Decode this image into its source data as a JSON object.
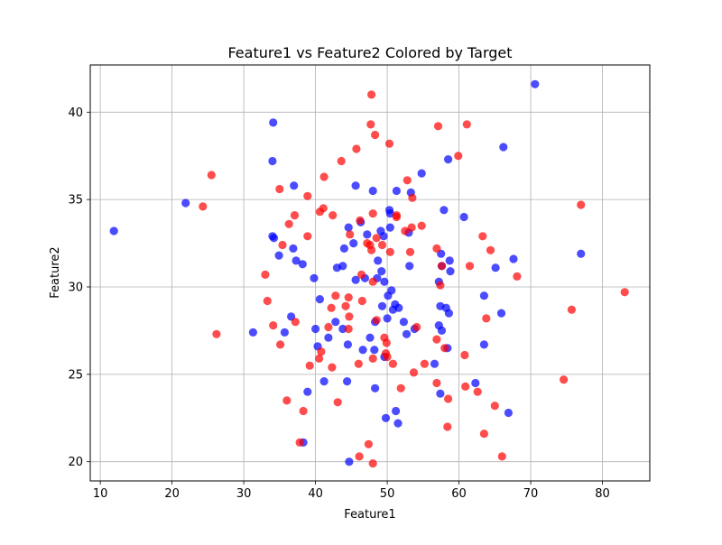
{
  "chart_data": {
    "type": "scatter",
    "title": "Feature1 vs Feature2 Colored by Target",
    "xlabel": "Feature1",
    "ylabel": "Feature2",
    "xlim": [
      8.6,
      86.6
    ],
    "ylim": [
      18.9,
      42.7
    ],
    "xticks": [
      10,
      20,
      30,
      40,
      50,
      60,
      70,
      80
    ],
    "yticks": [
      20,
      25,
      30,
      35,
      40
    ],
    "grid": true,
    "legend": "none",
    "series": [
      {
        "color": "#0000ff",
        "points": [
          [
            11.9,
            33.2
          ],
          [
            21.9,
            34.8
          ],
          [
            31.3,
            27.4
          ],
          [
            34.1,
            39.4
          ],
          [
            34.0,
            37.2
          ],
          [
            34.0,
            32.9
          ],
          [
            34.2,
            32.8
          ],
          [
            34.9,
            31.8
          ],
          [
            35.7,
            27.4
          ],
          [
            36.6,
            28.3
          ],
          [
            37.0,
            35.8
          ],
          [
            36.9,
            32.2
          ],
          [
            37.3,
            31.5
          ],
          [
            38.2,
            31.3
          ],
          [
            38.3,
            21.1
          ],
          [
            38.9,
            24.0
          ],
          [
            39.8,
            30.5
          ],
          [
            40.0,
            27.6
          ],
          [
            40.3,
            26.6
          ],
          [
            40.6,
            29.3
          ],
          [
            41.2,
            24.6
          ],
          [
            41.8,
            27.1
          ],
          [
            42.8,
            28.0
          ],
          [
            43.0,
            31.1
          ],
          [
            43.8,
            31.2
          ],
          [
            43.8,
            27.6
          ],
          [
            44.0,
            32.2
          ],
          [
            44.4,
            24.6
          ],
          [
            44.5,
            26.7
          ],
          [
            44.6,
            33.4
          ],
          [
            44.7,
            20.0
          ],
          [
            45.3,
            32.5
          ],
          [
            45.6,
            35.8
          ],
          [
            45.6,
            30.4
          ],
          [
            46.3,
            33.7
          ],
          [
            46.6,
            26.4
          ],
          [
            46.9,
            30.5
          ],
          [
            47.2,
            33.0
          ],
          [
            47.6,
            27.1
          ],
          [
            48.0,
            35.5
          ],
          [
            48.2,
            26.4
          ],
          [
            48.3,
            24.2
          ],
          [
            48.3,
            28.0
          ],
          [
            48.6,
            30.5
          ],
          [
            48.7,
            31.5
          ],
          [
            49.1,
            33.2
          ],
          [
            49.2,
            30.9
          ],
          [
            49.3,
            28.9
          ],
          [
            49.5,
            32.9
          ],
          [
            49.6,
            26.0
          ],
          [
            49.6,
            30.3
          ],
          [
            49.8,
            22.5
          ],
          [
            50.0,
            28.2
          ],
          [
            50.1,
            29.5
          ],
          [
            50.3,
            34.4
          ],
          [
            50.4,
            34.2
          ],
          [
            50.4,
            33.4
          ],
          [
            50.6,
            29.8
          ],
          [
            50.8,
            28.7
          ],
          [
            51.1,
            29.0
          ],
          [
            51.2,
            22.9
          ],
          [
            51.3,
            35.5
          ],
          [
            51.5,
            22.2
          ],
          [
            51.6,
            28.8
          ],
          [
            52.3,
            28.0
          ],
          [
            52.7,
            27.3
          ],
          [
            53.0,
            33.1
          ],
          [
            53.1,
            31.2
          ],
          [
            53.3,
            35.4
          ],
          [
            53.8,
            27.6
          ],
          [
            54.8,
            36.5
          ],
          [
            56.6,
            25.6
          ],
          [
            57.2,
            27.8
          ],
          [
            57.2,
            30.3
          ],
          [
            57.4,
            28.9
          ],
          [
            57.4,
            23.9
          ],
          [
            57.5,
            31.9
          ],
          [
            57.6,
            31.2
          ],
          [
            57.6,
            27.5
          ],
          [
            57.9,
            34.4
          ],
          [
            58.2,
            28.8
          ],
          [
            58.4,
            26.5
          ],
          [
            58.5,
            37.3
          ],
          [
            58.6,
            28.5
          ],
          [
            58.7,
            31.5
          ],
          [
            58.8,
            30.9
          ],
          [
            60.7,
            34.0
          ],
          [
            62.3,
            24.5
          ],
          [
            63.5,
            29.5
          ],
          [
            63.5,
            26.7
          ],
          [
            65.1,
            31.1
          ],
          [
            65.9,
            28.5
          ],
          [
            66.2,
            38.0
          ],
          [
            66.9,
            22.8
          ],
          [
            67.6,
            31.6
          ],
          [
            70.6,
            41.6
          ],
          [
            77.0,
            31.9
          ]
        ]
      },
      {
        "color": "#ff0000",
        "points": [
          [
            24.3,
            34.6
          ],
          [
            25.5,
            36.4
          ],
          [
            26.2,
            27.3
          ],
          [
            33.0,
            30.7
          ],
          [
            33.3,
            29.2
          ],
          [
            34.1,
            27.8
          ],
          [
            35.0,
            35.6
          ],
          [
            35.1,
            26.7
          ],
          [
            35.4,
            32.4
          ],
          [
            36.0,
            23.5
          ],
          [
            36.3,
            33.6
          ],
          [
            37.1,
            34.1
          ],
          [
            37.2,
            28.0
          ],
          [
            37.8,
            21.1
          ],
          [
            38.3,
            22.9
          ],
          [
            38.9,
            35.2
          ],
          [
            38.9,
            32.9
          ],
          [
            39.2,
            25.5
          ],
          [
            40.5,
            25.9
          ],
          [
            40.6,
            34.3
          ],
          [
            40.8,
            26.3
          ],
          [
            41.1,
            34.5
          ],
          [
            41.2,
            36.3
          ],
          [
            41.8,
            27.7
          ],
          [
            42.2,
            28.8
          ],
          [
            42.3,
            25.4
          ],
          [
            42.4,
            34.1
          ],
          [
            42.8,
            29.5
          ],
          [
            43.1,
            23.4
          ],
          [
            43.6,
            37.2
          ],
          [
            44.2,
            28.9
          ],
          [
            44.6,
            29.4
          ],
          [
            44.6,
            27.6
          ],
          [
            44.7,
            28.3
          ],
          [
            44.8,
            33.0
          ],
          [
            45.7,
            37.9
          ],
          [
            46.0,
            25.6
          ],
          [
            46.1,
            20.3
          ],
          [
            46.2,
            33.8
          ],
          [
            46.4,
            30.7
          ],
          [
            46.5,
            29.2
          ],
          [
            47.2,
            32.5
          ],
          [
            47.4,
            21.0
          ],
          [
            47.6,
            32.4
          ],
          [
            47.7,
            39.3
          ],
          [
            47.8,
            41.0
          ],
          [
            47.8,
            32.1
          ],
          [
            48.0,
            34.2
          ],
          [
            48.0,
            30.3
          ],
          [
            48.0,
            25.9
          ],
          [
            48.0,
            19.9
          ],
          [
            48.3,
            38.7
          ],
          [
            48.5,
            28.1
          ],
          [
            48.5,
            32.8
          ],
          [
            49.3,
            32.4
          ],
          [
            49.6,
            27.1
          ],
          [
            49.8,
            26.2
          ],
          [
            49.9,
            26.8
          ],
          [
            50.0,
            26.0
          ],
          [
            50.3,
            38.2
          ],
          [
            50.4,
            32.0
          ],
          [
            50.8,
            25.6
          ],
          [
            51.3,
            34.1
          ],
          [
            51.3,
            34.0
          ],
          [
            51.9,
            24.2
          ],
          [
            52.5,
            33.2
          ],
          [
            52.8,
            36.1
          ],
          [
            53.2,
            32.0
          ],
          [
            53.4,
            33.4
          ],
          [
            53.5,
            35.1
          ],
          [
            53.7,
            25.1
          ],
          [
            54.1,
            27.7
          ],
          [
            54.8,
            33.5
          ],
          [
            55.2,
            25.6
          ],
          [
            56.9,
            27.0
          ],
          [
            56.9,
            24.5
          ],
          [
            56.9,
            32.2
          ],
          [
            57.1,
            39.2
          ],
          [
            57.4,
            30.1
          ],
          [
            57.6,
            31.2
          ],
          [
            58.0,
            26.5
          ],
          [
            58.4,
            22.0
          ],
          [
            58.5,
            23.6
          ],
          [
            59.9,
            37.5
          ],
          [
            60.8,
            26.1
          ],
          [
            60.9,
            24.3
          ],
          [
            61.1,
            39.3
          ],
          [
            61.5,
            31.2
          ],
          [
            62.6,
            24.0
          ],
          [
            63.3,
            32.9
          ],
          [
            63.5,
            21.6
          ],
          [
            63.8,
            28.2
          ],
          [
            64.4,
            32.1
          ],
          [
            65.0,
            23.2
          ],
          [
            66.0,
            20.3
          ],
          [
            68.1,
            30.6
          ],
          [
            74.6,
            24.7
          ],
          [
            75.7,
            28.7
          ],
          [
            77.0,
            34.7
          ],
          [
            83.1,
            29.7
          ]
        ]
      }
    ]
  }
}
